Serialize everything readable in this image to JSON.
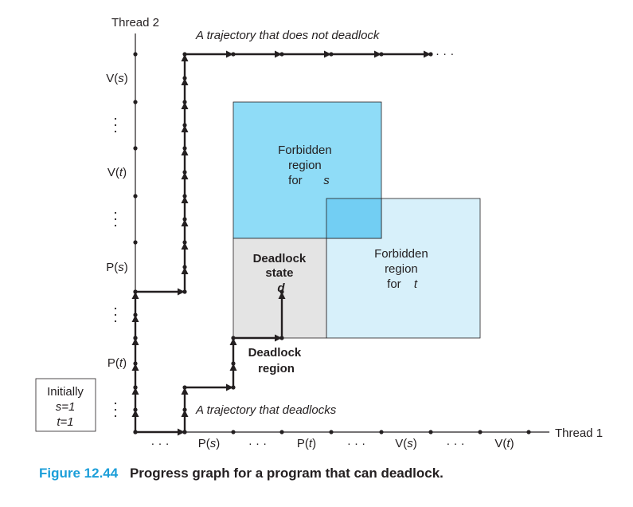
{
  "axes": {
    "x_label": "Thread 1",
    "y_label": "Thread 2",
    "x_ticks": [
      {
        "kind": "dots",
        "text": "· · ·"
      },
      {
        "kind": "fn",
        "fn": "P",
        "arg": "s"
      },
      {
        "kind": "dots",
        "text": "· · ·"
      },
      {
        "kind": "fn",
        "fn": "P",
        "arg": "t"
      },
      {
        "kind": "dots",
        "text": "· · ·"
      },
      {
        "kind": "fn",
        "fn": "V",
        "arg": "s"
      },
      {
        "kind": "dots",
        "text": "· · ·"
      },
      {
        "kind": "fn",
        "fn": "V",
        "arg": "t"
      }
    ],
    "y_ticks": [
      {
        "kind": "vdots"
      },
      {
        "kind": "fn",
        "fn": "P",
        "arg": "t"
      },
      {
        "kind": "vdots"
      },
      {
        "kind": "fn",
        "fn": "P",
        "arg": "s"
      },
      {
        "kind": "vdots"
      },
      {
        "kind": "fn",
        "fn": "V",
        "arg": "t"
      },
      {
        "kind": "vdots"
      },
      {
        "kind": "fn",
        "fn": "V",
        "arg": "s"
      }
    ]
  },
  "regions": {
    "forbidden_s": {
      "lines": [
        "Forbidden",
        "region",
        "for"
      ],
      "var": "s",
      "color": "#8fdcf7"
    },
    "forbidden_t": {
      "lines": [
        "Forbidden",
        "region",
        "for"
      ],
      "var": "t",
      "color": "#d7f0fa"
    },
    "overlap_color": "#72cef3",
    "deadlock_state": {
      "lines": [
        "Deadlock",
        "state"
      ],
      "var": "d",
      "color": "#e4e4e4"
    },
    "deadlock_region": {
      "lines": [
        "Deadlock",
        "region"
      ]
    }
  },
  "trajectories": {
    "no_deadlock": {
      "label": "A trajectory that does not deadlock",
      "continuation": "· · ·"
    },
    "deadlock": {
      "label": "A trajectory that deadlocks"
    }
  },
  "initially": {
    "title": "Initially",
    "s_value": "s=1",
    "t_value": "t=1"
  },
  "caption": {
    "number": "Figure 12.44",
    "title": "Progress graph for a program that can deadlock."
  },
  "colors": {
    "axis": "#231f20",
    "caption_number": "#1b9ed9",
    "region_stroke": "#231f20"
  }
}
